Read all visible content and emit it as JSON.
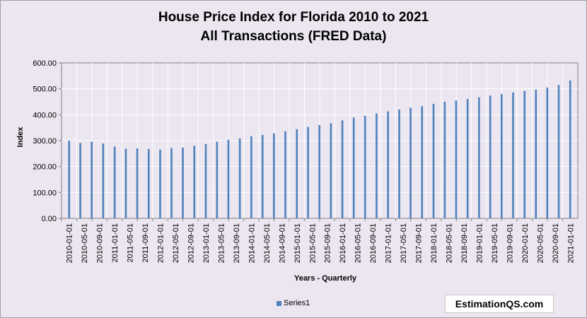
{
  "chart_data": {
    "type": "bar",
    "title": "House Price Index for Florida 2010 to 2021",
    "subtitle": "All Transactions (FRED Data)",
    "xlabel": "Years - Quarterly",
    "ylabel": "Index",
    "ylim": [
      0,
      600
    ],
    "yticks": [
      "0.00",
      "100.00",
      "200.00",
      "300.00",
      "400.00",
      "500.00",
      "600.00"
    ],
    "grid": true,
    "legend_position": "bottom",
    "bar_color": "#4f81bd",
    "categories": [
      "2010-01-01",
      "2010-05-01",
      "2010-09-01",
      "2011-01-01",
      "2011-05-01",
      "2011-09-01",
      "2012-01-01",
      "2012-05-01",
      "2012-09-01",
      "2013-01-01",
      "2013-05-01",
      "2013-09-01",
      "2014-01-01",
      "2014-05-01",
      "2014-09-01",
      "2015-01-01",
      "2015-05-01",
      "2015-09-01",
      "2016-01-01",
      "2016-05-01",
      "2016-09-01",
      "2017-01-01",
      "2017-05-01",
      "2017-09-01",
      "2018-01-01",
      "2018-05-01",
      "2018-09-01",
      "2019-01-01",
      "2019-05-01",
      "2019-09-01",
      "2020-01-01",
      "2020-05-01",
      "2020-09-01",
      "2021-01-01"
    ],
    "x": [
      "2010-01-01",
      "2010-04-01",
      "2010-07-01",
      "2010-10-01",
      "2011-01-01",
      "2011-04-01",
      "2011-07-01",
      "2011-10-01",
      "2012-01-01",
      "2012-04-01",
      "2012-07-01",
      "2012-10-01",
      "2013-01-01",
      "2013-04-01",
      "2013-07-01",
      "2013-10-01",
      "2014-01-01",
      "2014-04-01",
      "2014-07-01",
      "2014-10-01",
      "2015-01-01",
      "2015-04-01",
      "2015-07-01",
      "2015-10-01",
      "2016-01-01",
      "2016-04-01",
      "2016-07-01",
      "2016-10-01",
      "2017-01-01",
      "2017-04-01",
      "2017-07-01",
      "2017-10-01",
      "2018-01-01",
      "2018-04-01",
      "2018-07-01",
      "2018-10-01",
      "2019-01-01",
      "2019-04-01",
      "2019-07-01",
      "2019-10-01",
      "2020-01-01",
      "2020-04-01",
      "2020-07-01",
      "2020-10-01",
      "2021-01-01"
    ],
    "series": [
      {
        "name": "Series1",
        "values": [
          300,
          291,
          296,
          289,
          277,
          269,
          270,
          268,
          265,
          271,
          273,
          280,
          287,
          296,
          303,
          309,
          317,
          322,
          328,
          336,
          344,
          353,
          360,
          367,
          378,
          389,
          396,
          405,
          413,
          420,
          427,
          433,
          442,
          450,
          455,
          461,
          467,
          474,
          480,
          486,
          492,
          497,
          505,
          515,
          532
        ]
      }
    ]
  },
  "watermark": "EstimationQS.com"
}
